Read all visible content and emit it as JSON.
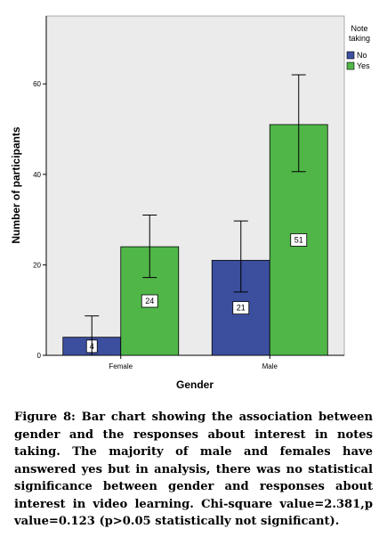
{
  "chart_data": {
    "type": "bar",
    "xlabel": "Gender",
    "ylabel": "Number of participants",
    "categories": [
      "Female",
      "Male"
    ],
    "ylim": [
      0,
      75
    ],
    "yticks": [
      0,
      20,
      40,
      60
    ],
    "legend": {
      "title": "Note taking",
      "position": "top-right"
    },
    "grid": false,
    "series": [
      {
        "name": "No",
        "color": "#3c4f9e",
        "values": [
          4,
          21
        ],
        "error": [
          [
            0,
            8.7
          ],
          [
            14,
            29.7
          ]
        ]
      },
      {
        "name": "Yes",
        "color": "#50b648",
        "values": [
          24,
          51
        ],
        "error": [
          [
            17.2,
            31
          ],
          [
            40.6,
            62
          ]
        ]
      }
    ]
  },
  "caption": "Figure 8: Bar chart showing the association between gender and the responses about interest in notes taking. The majority of male and females have answered yes but in analysis, there was no statistical significance between gender and responses about interest in video learning. Chi-square value=2.381,p value=0.123 (p>0.05 statistically not significant)."
}
